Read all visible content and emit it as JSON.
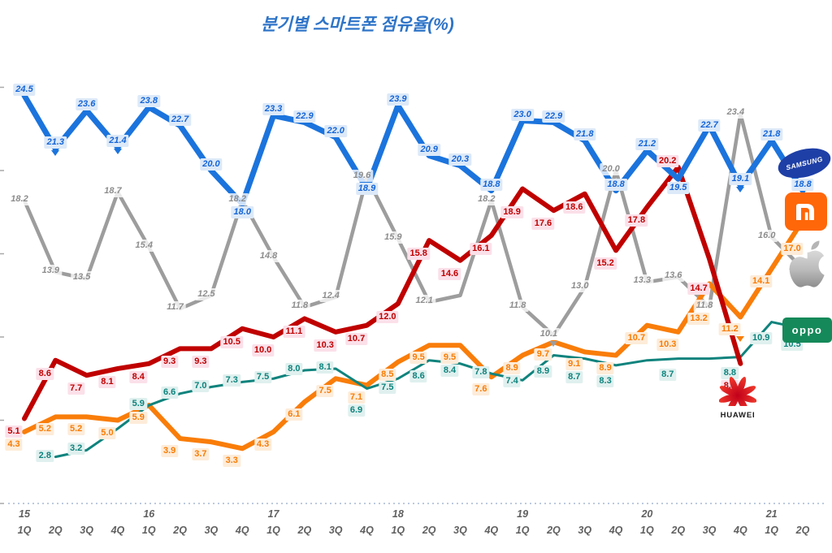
{
  "title": "분기별 스마트폰 점유율(%)",
  "x_axis": {
    "years": [
      {
        "label": "15",
        "index": 0
      },
      {
        "label": "16",
        "index": 4
      },
      {
        "label": "17",
        "index": 8
      },
      {
        "label": "18",
        "index": 12
      },
      {
        "label": "19",
        "index": 16
      },
      {
        "label": "20",
        "index": 20
      },
      {
        "label": "21",
        "index": 24
      }
    ],
    "quarters": [
      "1Q",
      "2Q",
      "3Q",
      "4Q",
      "1Q",
      "2Q",
      "3Q",
      "4Q",
      "1Q",
      "2Q",
      "3Q",
      "4Q",
      "1Q",
      "2Q",
      "3Q",
      "4Q",
      "1Q",
      "2Q",
      "3Q",
      "4Q",
      "1Q",
      "2Q",
      "3Q",
      "4Q",
      "1Q",
      "2Q"
    ]
  },
  "chart_data": {
    "type": "line",
    "title": "분기별 스마트폰 점유율(%)",
    "categories": [
      "15 1Q",
      "15 2Q",
      "15 3Q",
      "15 4Q",
      "16 1Q",
      "16 2Q",
      "16 3Q",
      "16 4Q",
      "17 1Q",
      "17 2Q",
      "17 3Q",
      "17 4Q",
      "18 1Q",
      "18 2Q",
      "18 3Q",
      "18 4Q",
      "19 1Q",
      "19 2Q",
      "19 3Q",
      "19 4Q",
      "20 1Q",
      "20 2Q",
      "20 3Q",
      "20 4Q",
      "21 1Q",
      "21 2Q"
    ],
    "ylim": [
      0,
      26
    ],
    "grid": false,
    "legend_position": "right-logos",
    "series": [
      {
        "name": "Apple",
        "color": "#9d9d9d",
        "width": 4.5,
        "label": {
          "color": "#8d8d8d",
          "bg": "rgba(255,255,255,0.78)",
          "italic": true
        },
        "side": "hug",
        "dyb": 12,
        "overrides": {},
        "arrows": [
          17
        ],
        "hide_labels": [
          14
        ],
        "values": [
          18.2,
          13.9,
          13.5,
          18.7,
          15.4,
          11.7,
          12.5,
          18.2,
          14.8,
          11.8,
          12.4,
          19.6,
          15.9,
          12.1,
          12.5,
          18.2,
          11.8,
          10.1,
          13.0,
          20.0,
          13.3,
          13.6,
          11.8,
          23.4,
          16.0,
          14.1
        ]
      },
      {
        "name": "Xiaomi",
        "color": "#f97d09",
        "width": 6,
        "label": {
          "color": "#f97c05",
          "bg": "#fdecd9",
          "italic": false
        },
        "side": "below",
        "dyb": 8,
        "overrides": {},
        "arrows": [
          23
        ],
        "hide_labels": [],
        "values": [
          4.3,
          5.2,
          5.2,
          5.0,
          5.9,
          3.9,
          3.7,
          3.3,
          4.3,
          6.1,
          7.5,
          7.1,
          8.5,
          9.5,
          9.5,
          7.6,
          8.9,
          9.7,
          9.1,
          8.9,
          10.7,
          10.3,
          13.2,
          11.2,
          14.1,
          17.0
        ]
      },
      {
        "name": "OPPO",
        "color": "#0f837d",
        "width": 3,
        "label": {
          "color": "#0d837d",
          "bg": "#dff0ee",
          "italic": false
        },
        "side": "hug",
        "dyb": 12,
        "overrides": {
          "13": "below",
          "17": "below",
          "18": "below",
          "19": "below",
          "21": "below",
          "23": "below",
          "24": "below",
          "25": "below"
        },
        "arrows": [],
        "hide_labels": [
          3,
          20,
          22
        ],
        "values": [
          null,
          2.8,
          3.2,
          4.5,
          5.9,
          6.6,
          7.0,
          7.3,
          7.5,
          8.0,
          8.1,
          6.9,
          7.5,
          8.6,
          8.4,
          7.8,
          7.4,
          8.9,
          8.7,
          8.3,
          8.6,
          8.7,
          8.7,
          8.8,
          10.9,
          10.5
        ]
      },
      {
        "name": "Huawei",
        "color": "#c00000",
        "width": 6,
        "label": {
          "color": "#c00000",
          "bg": "#fbe0e9",
          "italic": false
        },
        "side": "below",
        "dyb": 9,
        "overrides": {
          "21": "above"
        },
        "arrows": [],
        "hide_labels": [],
        "values": [
          5.1,
          8.6,
          7.7,
          8.1,
          8.4,
          9.3,
          9.3,
          10.5,
          10.0,
          11.1,
          10.3,
          10.7,
          12.0,
          15.8,
          14.6,
          16.1,
          18.9,
          17.6,
          18.6,
          15.2,
          17.8,
          20.2,
          14.7,
          8.4,
          null,
          null
        ]
      },
      {
        "name": "Samsung",
        "color": "#1b74dd",
        "width": 7,
        "label": {
          "color": "#1565d8",
          "bg": "#dce9f8",
          "italic": true
        },
        "side": "above",
        "dyb": 4,
        "overrides": {
          "21": "below"
        },
        "arrows": [
          1,
          3,
          23
        ],
        "hide_labels": [],
        "values": [
          24.5,
          21.3,
          23.6,
          21.4,
          23.8,
          22.7,
          20.0,
          18.0,
          23.3,
          22.9,
          22.0,
          18.9,
          23.9,
          20.9,
          20.3,
          18.8,
          23.0,
          22.9,
          21.8,
          18.8,
          21.2,
          19.5,
          22.7,
          19.1,
          21.8,
          18.8
        ]
      }
    ]
  },
  "logos": {
    "samsung": "SAMSUNG",
    "oppo": "oppo",
    "huawei": "HUAWEI"
  }
}
